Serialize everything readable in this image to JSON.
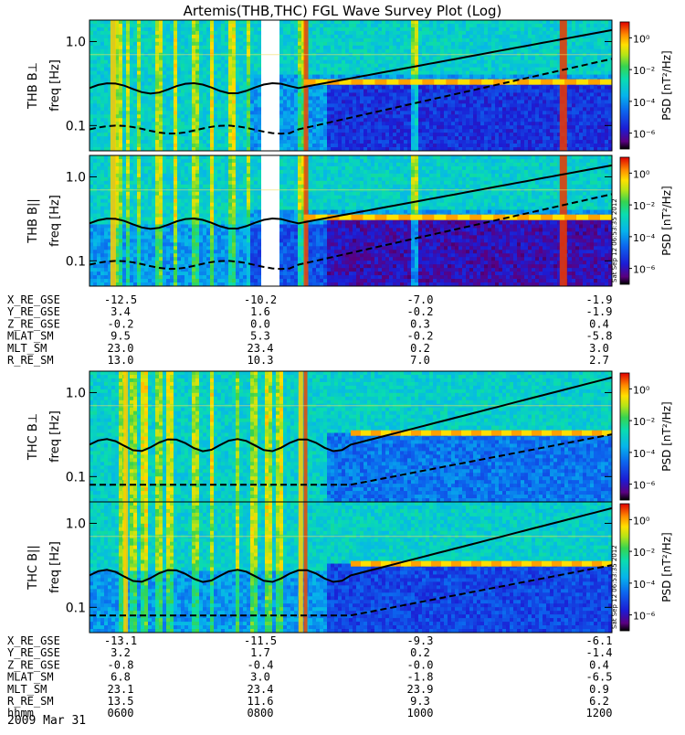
{
  "title": "Artemis(THB,THC) FGL Wave Survey Plot (Log)",
  "colorbar": {
    "label": "PSD [nT²/Hz]",
    "ticks": [
      "10⁰",
      "10⁻²",
      "10⁻⁴",
      "10⁻⁶"
    ],
    "exponents": [
      0,
      -2,
      -4,
      -6
    ]
  },
  "stamp": "Sat Sep 12 06:53:35 2012",
  "chart_data": [
    {
      "type": "heatmap",
      "panel": "THB B⊥",
      "ylabel": "freq [Hz]",
      "yscale": "log",
      "ylim": [
        0.05,
        1.8
      ],
      "yticks": [
        "1.0",
        "0.1"
      ],
      "zlabel": "PSD [nT²/Hz]",
      "zscale": "log",
      "zlim": [
        1e-07,
        10
      ],
      "data_gap": true
    },
    {
      "type": "heatmap",
      "panel": "THB B||",
      "ylabel": "freq [Hz]",
      "yscale": "log",
      "ylim": [
        0.05,
        1.8
      ],
      "yticks": [
        "1.0",
        "0.1"
      ],
      "zlabel": "PSD [nT²/Hz]",
      "zscale": "log",
      "zlim": [
        1e-07,
        10
      ],
      "data_gap": true
    },
    {
      "type": "heatmap",
      "panel": "THC B⊥",
      "ylabel": "freq [Hz]",
      "yscale": "log",
      "ylim": [
        0.05,
        1.8
      ],
      "yticks": [
        "1.0",
        "0.1"
      ],
      "zlabel": "PSD [nT²/Hz]",
      "zscale": "log",
      "zlim": [
        1e-07,
        10
      ]
    },
    {
      "type": "heatmap",
      "panel": "THC B||",
      "ylabel": "freq [Hz]",
      "yscale": "log",
      "ylim": [
        0.05,
        1.8
      ],
      "yticks": [
        "1.0",
        "0.1"
      ],
      "zlabel": "PSD [nT²/Hz]",
      "zscale": "log",
      "zlim": [
        1e-07,
        10
      ]
    }
  ],
  "orbit_tables": [
    {
      "probe": "THB",
      "rows": [
        {
          "label": "X_RE_GSE",
          "values": [
            "-12.5",
            "-10.2",
            "-7.0",
            "-1.9"
          ]
        },
        {
          "label": "Y_RE_GSE",
          "values": [
            "3.4",
            "1.6",
            "-0.2",
            "-1.9"
          ]
        },
        {
          "label": "Z_RE_GSE",
          "values": [
            "-0.2",
            "0.0",
            "0.3",
            "0.4"
          ]
        },
        {
          "label": "MLAT_SM",
          "values": [
            "9.5",
            "5.3",
            "-0.2",
            "-5.8"
          ]
        },
        {
          "label": "MLT_SM",
          "values": [
            "23.0",
            "23.4",
            "0.2",
            "3.0"
          ]
        },
        {
          "label": "R_RE_SM",
          "values": [
            "13.0",
            "10.3",
            "7.0",
            "2.7"
          ]
        }
      ]
    },
    {
      "probe": "THC",
      "rows": [
        {
          "label": "X_RE_GSE",
          "values": [
            "-13.1",
            "-11.5",
            "-9.3",
            "-6.1"
          ]
        },
        {
          "label": "Y_RE_GSE",
          "values": [
            "3.2",
            "1.7",
            "0.2",
            "-1.4"
          ]
        },
        {
          "label": "Z_RE_GSE",
          "values": [
            "-0.8",
            "-0.4",
            "-0.0",
            "0.4"
          ]
        },
        {
          "label": "MLAT_SM",
          "values": [
            "6.8",
            "3.0",
            "-1.8",
            "-6.5"
          ]
        },
        {
          "label": "MLT_SM",
          "values": [
            "23.1",
            "23.4",
            "23.9",
            "0.9"
          ]
        },
        {
          "label": "R_RE_SM",
          "values": [
            "13.5",
            "11.6",
            "9.3",
            "6.2"
          ]
        },
        {
          "label": "hhmm",
          "values": [
            "0600",
            "0800",
            "1000",
            "1200"
          ]
        }
      ]
    }
  ],
  "date": "2009 Mar 31"
}
